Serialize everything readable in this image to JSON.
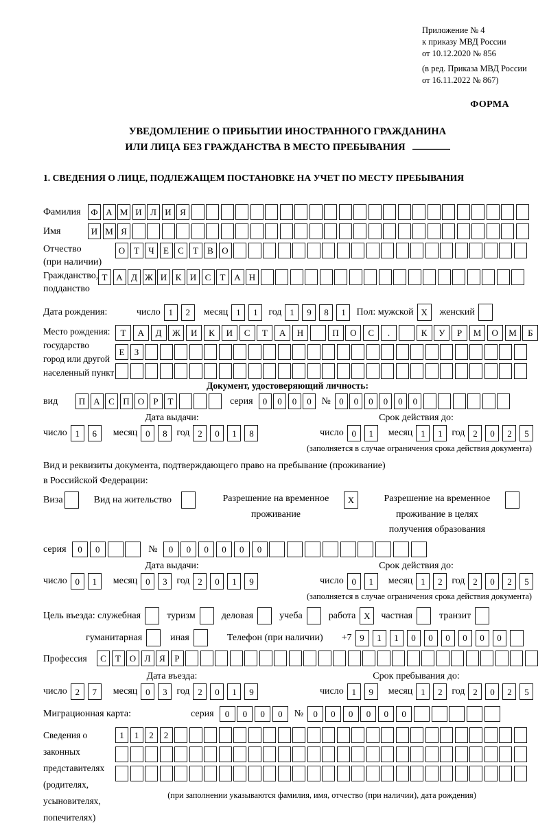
{
  "meta": {
    "annex_lines": [
      "Приложение № 4",
      "к приказу МВД России",
      "от 10.12.2020 № 856"
    ],
    "annex_note_lines": [
      "(в ред. Приказа МВД России",
      "от 16.11.2022 № 867)"
    ],
    "forma": "ФОРМА",
    "title_line1": "УВЕДОМЛЕНИЕ О ПРИБЫТИИ ИНОСТРАННОГО ГРАЖДАНИНА",
    "title_line2": "ИЛИ ЛИЦА БЕЗ ГРАЖДАНСТВА В МЕСТО ПРЕБЫВАНИЯ",
    "section1_title": "1. СВЕДЕНИЯ О ЛИЦЕ, ПОДЛЕЖАЩЕМ ПОСТАНОВКЕ НА УЧЕТ ПО МЕСТУ ПРЕБЫВАНИЯ"
  },
  "labels": {
    "surname": "Фамилия",
    "given_name": "Имя",
    "patronymic_1": "Отчество",
    "patronymic_2": "(при наличии)",
    "citizenship_1": "Гражданство,",
    "citizenship_2": "подданство",
    "birth_date": "Дата рождения:",
    "day": "число",
    "month": "месяц",
    "year": "год",
    "sex_male": "Пол: мужской",
    "sex_female": "женский",
    "birthplace_1": "Место рождения:",
    "birthplace_2": "государство",
    "birthplace_3": "город или другой",
    "birthplace_4": "населенный пункт",
    "identity_doc_header": "Документ, удостоверяющий личность:",
    "doc_type": "вид",
    "series": "серия",
    "number": "№",
    "issue_date": "Дата выдачи:",
    "valid_until": "Срок действия до:",
    "residence_doc_1": "Вид и реквизиты документа, подтверждающего право на пребывание (проживание)",
    "residence_doc_2": "в Российской Федерации:",
    "visa": "Виза",
    "residence_permit": "Вид на жительство",
    "temp_residence": "Разрешение на временное проживание",
    "temp_residence_edu": "Разрешение на временное проживание в целях получения образования",
    "purpose": "Цель въезда: служебная",
    "tourism": "туризм",
    "business": "деловая",
    "study": "учеба",
    "work": "работа",
    "private": "частная",
    "transit": "транзит",
    "humanitarian": "гуманитарная",
    "other": "иная",
    "phone": "Телефон (при наличии)",
    "phone_prefix": "+7",
    "profession": "Профессия",
    "entry_date": "Дата въезда:",
    "stay_until": "Срок пребывания до:",
    "migration_card": "Миграционная карта:",
    "representatives_lines": [
      "Сведения о",
      "законных",
      "представителях",
      "(родителях,",
      "усыновителях,",
      "попечителях)"
    ],
    "footnote_validity": "(заполняется в случае ограничения срока действия документа)",
    "footnote_representatives": "(при заполнении указываются фамилия, имя, отчество (при наличии), дата рождения)"
  },
  "fields": {
    "surname": {
      "value": "ФАМИЛИЯ",
      "total": 30
    },
    "given_name": {
      "value": "ИМЯ",
      "total": 30
    },
    "patronymic": {
      "value": "ОТЧЕСТВО",
      "total": 28
    },
    "citizenship": {
      "value": "ТАДЖИКИСТАН",
      "total": 29
    },
    "birth_day": {
      "value": "12"
    },
    "birth_month": {
      "value": "11"
    },
    "birth_year": {
      "value": "1981"
    },
    "sex_male": {
      "value": "X",
      "total": 1
    },
    "sex_female": {
      "value": "",
      "total": 1
    },
    "birthplace_row1": {
      "value": "ТАДЖИКИСТАН ПОС. КУРМОМБ",
      "total": 24
    },
    "birthplace_row2": {
      "value": "ЕЗ",
      "total": 28
    },
    "birthplace_row3": {
      "value": "",
      "total": 28
    },
    "id_type": {
      "value": "ПАСПОРТ",
      "total": 10
    },
    "id_series": {
      "value": "0000",
      "total": 4
    },
    "id_number": {
      "value": "000000",
      "total": 12
    },
    "id_issue_day": {
      "value": "16"
    },
    "id_issue_month": {
      "value": "08"
    },
    "id_issue_year": {
      "value": "2018"
    },
    "id_valid_day": {
      "value": "01"
    },
    "id_valid_month": {
      "value": "11"
    },
    "id_valid_year": {
      "value": "2025"
    },
    "cb_visa": {
      "value": "",
      "total": 1
    },
    "cb_residence_permit": {
      "value": "",
      "total": 1
    },
    "cb_temp_residence": {
      "value": "X",
      "total": 1
    },
    "cb_temp_residence_edu": {
      "value": "",
      "total": 1
    },
    "permit_series": {
      "value": "00",
      "total": 4
    },
    "permit_number": {
      "value": "000000",
      "total": 15
    },
    "permit_issue_day": {
      "value": "01"
    },
    "permit_issue_month": {
      "value": "03"
    },
    "permit_issue_year": {
      "value": "2019"
    },
    "permit_valid_day": {
      "value": "01"
    },
    "permit_valid_month": {
      "value": "12"
    },
    "permit_valid_year": {
      "value": "2025"
    },
    "cb_official": {
      "value": "",
      "total": 1
    },
    "cb_tourism": {
      "value": "",
      "total": 1
    },
    "cb_business": {
      "value": "",
      "total": 1
    },
    "cb_study": {
      "value": "",
      "total": 1
    },
    "cb_work": {
      "value": "X",
      "total": 1
    },
    "cb_private": {
      "value": "",
      "total": 1
    },
    "cb_transit": {
      "value": "",
      "total": 1
    },
    "cb_humanitarian": {
      "value": "",
      "total": 1
    },
    "cb_other": {
      "value": "",
      "total": 1
    },
    "phone": {
      "value": "911000000",
      "total": 10
    },
    "profession": {
      "value": "СТОЛЯР",
      "total": 30
    },
    "entry_day": {
      "value": "27"
    },
    "entry_month": {
      "value": "03"
    },
    "entry_year": {
      "value": "2019"
    },
    "stay_day": {
      "value": "19"
    },
    "stay_month": {
      "value": "12"
    },
    "stay_year": {
      "value": "2025"
    },
    "migcard_series": {
      "value": "0000",
      "total": 4
    },
    "migcard_number": {
      "value": "000000",
      "total": 11
    },
    "rep_row1": {
      "value": "1122",
      "total": 28
    },
    "rep_row2": {
      "value": "",
      "total": 28
    },
    "rep_row3": {
      "value": "",
      "total": 28
    }
  }
}
